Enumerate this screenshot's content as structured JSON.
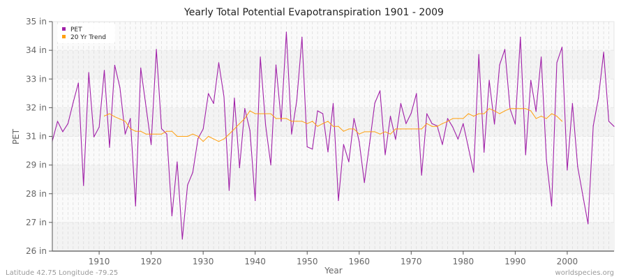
{
  "chart_data": {
    "type": "line",
    "title": "Yearly Total Potential Evapotranspiration 1901 - 2009",
    "xlabel": "Year",
    "ylabel": "PET",
    "xlim": [
      1901,
      2009
    ],
    "ylim": [
      26,
      35
    ],
    "x_ticks": [
      1910,
      1920,
      1930,
      1940,
      1950,
      1960,
      1970,
      1980,
      1990,
      2000
    ],
    "y_ticks": [
      {
        "value": 35,
        "label": "35 in"
      },
      {
        "value": 33.875,
        "label": "34 in"
      },
      {
        "value": 32.75,
        "label": "33 in"
      },
      {
        "value": 31.625,
        "label": "32 in"
      },
      {
        "value": 30.5,
        "label": "31 in"
      },
      {
        "value": 29.375,
        "label": "29 in"
      },
      {
        "value": 28.25,
        "label": "28 in"
      },
      {
        "value": 27.125,
        "label": "27 in"
      },
      {
        "value": 26,
        "label": "26 in"
      }
    ],
    "grid": true,
    "legend_position": "top-left",
    "series": [
      {
        "name": "PET",
        "color": "#a020a8",
        "start_year": 1901,
        "values": [
          30.32,
          31.09,
          30.68,
          31.0,
          31.82,
          32.59,
          28.57,
          33.0,
          30.48,
          30.86,
          33.09,
          30.07,
          33.29,
          32.41,
          30.59,
          31.2,
          27.77,
          33.18,
          31.68,
          30.18,
          33.91,
          30.8,
          30.59,
          27.38,
          29.5,
          26.47,
          28.59,
          29.09,
          30.41,
          30.79,
          32.18,
          31.79,
          33.39,
          32.05,
          28.38,
          32.0,
          29.27,
          31.59,
          30.73,
          27.98,
          33.61,
          30.95,
          29.38,
          33.3,
          31.09,
          34.59,
          30.59,
          31.91,
          34.39,
          30.09,
          30.0,
          31.5,
          31.39,
          29.89,
          31.79,
          27.98,
          30.18,
          29.5,
          31.2,
          30.29,
          28.69,
          30.23,
          31.8,
          32.29,
          29.78,
          31.29,
          30.38,
          31.79,
          31.0,
          31.41,
          32.18,
          28.98,
          31.39,
          31.0,
          30.91,
          30.18,
          31.2,
          30.86,
          30.39,
          31.0,
          30.05,
          29.09,
          33.71,
          29.88,
          32.7,
          30.98,
          33.3,
          33.91,
          31.59,
          30.98,
          34.39,
          29.78,
          32.7,
          31.48,
          33.61,
          29.59,
          27.77,
          33.39,
          34.0,
          29.18,
          31.79,
          29.32,
          28.18,
          27.07,
          30.91,
          32.0,
          33.8,
          31.09,
          30.89
        ]
      },
      {
        "name": "20 Yr Trend",
        "color": "#ffa010",
        "start_year": 1911,
        "values": [
          31.3,
          31.39,
          31.27,
          31.18,
          31.09,
          30.8,
          30.7,
          30.7,
          30.59,
          30.59,
          30.59,
          30.59,
          30.7,
          30.7,
          30.5,
          30.5,
          30.5,
          30.59,
          30.5,
          30.3,
          30.5,
          30.4,
          30.3,
          30.4,
          30.59,
          30.79,
          31.0,
          31.2,
          31.5,
          31.39,
          31.39,
          31.39,
          31.39,
          31.2,
          31.2,
          31.2,
          31.09,
          31.09,
          31.09,
          31.0,
          31.09,
          30.89,
          31.0,
          31.09,
          30.89,
          30.89,
          30.7,
          30.79,
          30.79,
          30.59,
          30.68,
          30.68,
          30.68,
          30.59,
          30.68,
          30.59,
          30.79,
          30.79,
          30.79,
          30.79,
          30.79,
          30.79,
          31.0,
          30.89,
          30.89,
          31.0,
          31.09,
          31.2,
          31.2,
          31.2,
          31.39,
          31.29,
          31.39,
          31.39,
          31.59,
          31.5,
          31.39,
          31.5,
          31.59,
          31.59,
          31.59,
          31.59,
          31.5,
          31.2,
          31.29,
          31.2,
          31.39,
          31.29,
          31.09
        ]
      }
    ]
  },
  "footer": {
    "location": "Latitude 42.75 Longitude -79.25",
    "source": "worldspecies.org"
  }
}
